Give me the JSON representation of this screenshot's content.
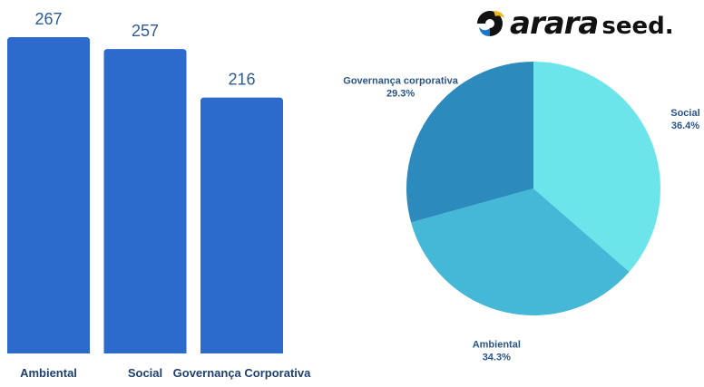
{
  "brand": {
    "name": "arara",
    "suffix": "seed."
  },
  "colors": {
    "bar": "#2c6bcb",
    "bar_value": "#2e5a96",
    "bar_category": "#1e3f70",
    "pie_label": "#2a5488",
    "pie_slices": [
      "#6be4ea",
      "#45b8d8",
      "#2c8bbc"
    ]
  },
  "chart_data": [
    {
      "type": "bar",
      "categories": [
        "Ambiental",
        "Social",
        "Governança Corporativa"
      ],
      "values": [
        267,
        257,
        216
      ],
      "data_labels": [
        "267",
        "257",
        "216"
      ],
      "title": "",
      "xlabel": "",
      "ylabel": "",
      "ylim": [
        0,
        267
      ],
      "grid": false,
      "legend": "none"
    },
    {
      "type": "pie",
      "categories": [
        "Social",
        "Ambiental",
        "Governança corporativa"
      ],
      "values": [
        36.4,
        34.3,
        29.3
      ],
      "data_labels": [
        "36.4%",
        "34.3%",
        "29.3%"
      ],
      "start": "top",
      "direction": "clockwise",
      "legend": "none"
    }
  ]
}
